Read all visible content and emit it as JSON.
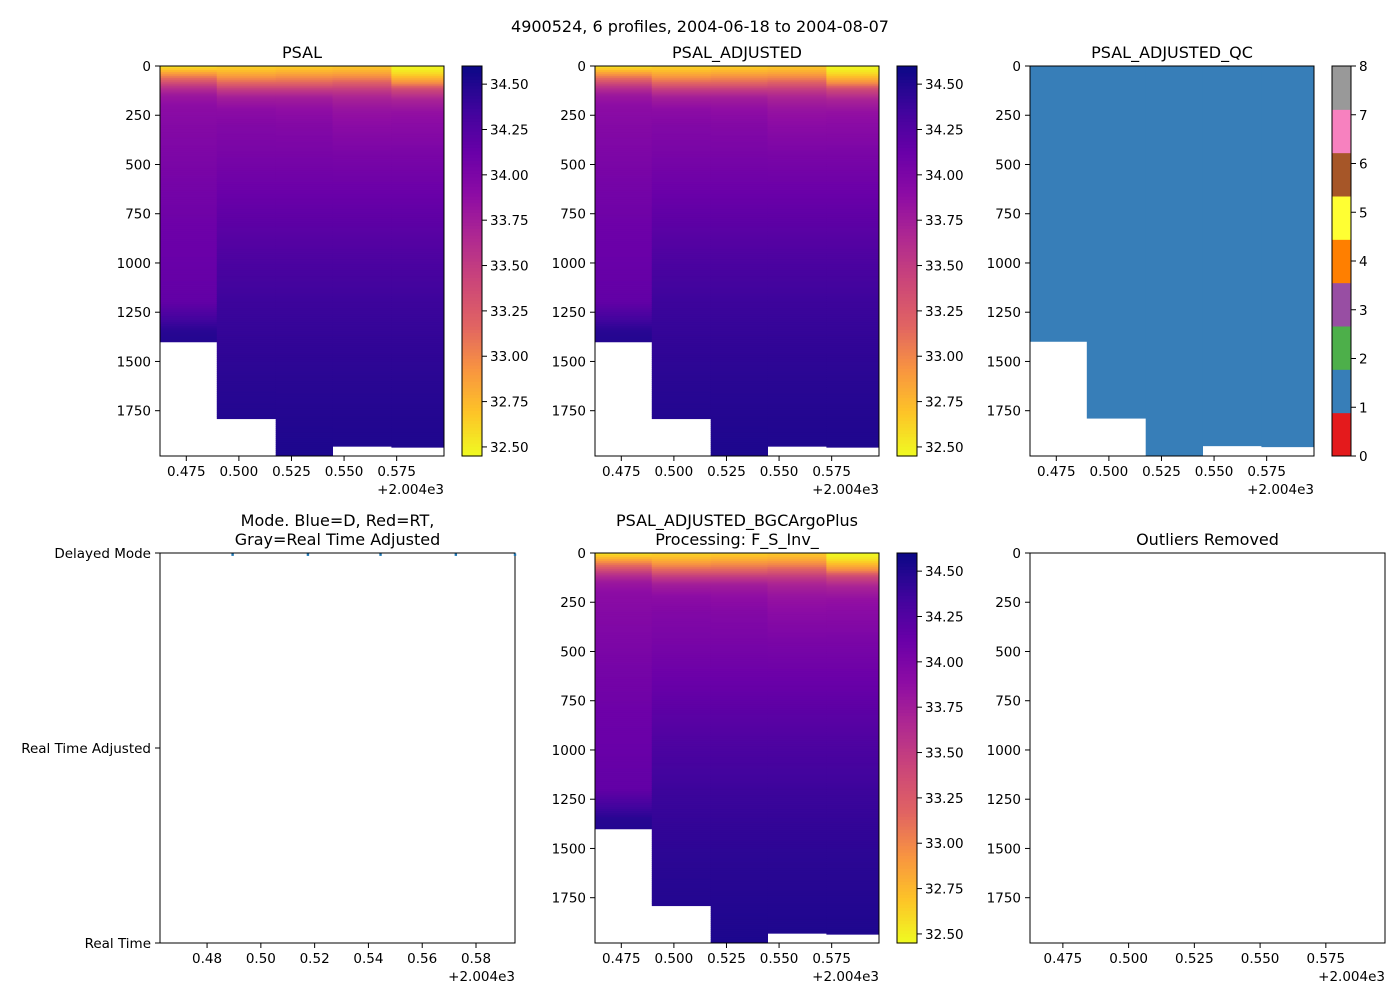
{
  "figure": {
    "suptitle": "4900524, 6 profiles, 2004-06-18 to 2004-08-07",
    "x_offset_label": "+2.004e3"
  },
  "colors": {
    "background": "#ffffff",
    "axis": "#000000",
    "plasma_r": [
      "#f0f921",
      "#fdc328",
      "#f89441",
      "#e16462",
      "#cc4778",
      "#b12a90",
      "#8f0da4",
      "#6a00a8",
      "#41049d",
      "#0d0887"
    ],
    "qc_classes": [
      "#e41a1c",
      "#377eb8",
      "#4daf4a",
      "#984ea3",
      "#ff7f00",
      "#ffff33",
      "#a65628",
      "#f781bf",
      "#999999"
    ],
    "mode_marker": "#1f77b4"
  },
  "chart_data": [
    {
      "type": "heatmap",
      "id": "psal",
      "title": "PSAL",
      "colormap": "plasma_r",
      "xlim": [
        2004.4625,
        2004.5975
      ],
      "ylim": [
        1980,
        0
      ],
      "xticks": [
        2004.475,
        2004.5,
        2004.525,
        2004.55,
        2004.575
      ],
      "xtick_labels": [
        "0.475",
        "0.500",
        "0.525",
        "0.550",
        "0.575"
      ],
      "yticks": [
        0,
        250,
        500,
        750,
        1000,
        1250,
        1500,
        1750
      ],
      "ytick_labels": [
        "0",
        "250",
        "500",
        "750",
        "1000",
        "1250",
        "1500",
        "1750"
      ],
      "colorbar": {
        "range": [
          32.45,
          34.6
        ],
        "ticks": [
          32.5,
          32.75,
          33.0,
          33.25,
          33.5,
          33.75,
          34.0,
          34.25,
          34.5
        ],
        "tick_labels": [
          "32.50",
          "32.75",
          "33.00",
          "33.25",
          "33.50",
          "33.75",
          "34.00",
          "34.25",
          "34.50"
        ]
      },
      "profiles": [
        {
          "x_start": 2004.4625,
          "x_end": 2004.4895,
          "max_depth": 1400,
          "z": [
            0,
            20,
            40,
            60,
            80,
            100,
            120,
            150,
            200,
            300,
            450,
            600,
            800,
            1000,
            1200,
            1350,
            1400
          ],
          "v": [
            32.55,
            32.7,
            32.9,
            33.1,
            33.3,
            33.5,
            33.65,
            33.8,
            33.9,
            33.95,
            34.0,
            34.05,
            34.1,
            34.13,
            34.17,
            34.48,
            34.5
          ]
        },
        {
          "x_start": 2004.4895,
          "x_end": 2004.5175,
          "max_depth": 1790,
          "z": [
            0,
            30,
            60,
            90,
            120,
            160,
            220,
            300,
            450,
            600,
            800,
            1000,
            1200,
            1400,
            1600,
            1790
          ],
          "v": [
            32.6,
            32.75,
            32.95,
            33.2,
            33.5,
            33.75,
            33.9,
            33.97,
            34.03,
            34.1,
            34.2,
            34.3,
            34.38,
            34.43,
            34.47,
            34.5
          ]
        },
        {
          "x_start": 2004.5175,
          "x_end": 2004.5445,
          "max_depth": 1980,
          "z": [
            0,
            30,
            60,
            90,
            120,
            160,
            220,
            300,
            450,
            600,
            800,
            1000,
            1200,
            1400,
            1600,
            1800,
            1980
          ],
          "v": [
            32.62,
            32.78,
            32.98,
            33.2,
            33.5,
            33.75,
            33.88,
            33.96,
            34.03,
            34.1,
            34.2,
            34.3,
            34.38,
            34.43,
            34.47,
            34.5,
            34.53
          ]
        },
        {
          "x_start": 2004.5445,
          "x_end": 2004.5725,
          "max_depth": 1930,
          "z": [
            0,
            30,
            60,
            90,
            120,
            160,
            220,
            310,
            450,
            600,
            800,
            1000,
            1200,
            1400,
            1600,
            1800,
            1930
          ],
          "v": [
            32.65,
            32.8,
            33.0,
            33.25,
            33.5,
            33.7,
            33.83,
            33.92,
            34.02,
            34.1,
            34.2,
            34.3,
            34.38,
            34.43,
            34.47,
            34.5,
            34.52
          ]
        },
        {
          "x_start": 2004.5725,
          "x_end": 2004.5975,
          "max_depth": 1935,
          "z": [
            0,
            20,
            40,
            60,
            90,
            120,
            170,
            230,
            300,
            450,
            600,
            800,
            1000,
            1200,
            1400,
            1600,
            1800,
            1935
          ],
          "v": [
            32.45,
            32.5,
            32.6,
            32.75,
            33.0,
            33.4,
            33.7,
            33.85,
            33.92,
            34.02,
            34.1,
            34.2,
            34.3,
            34.38,
            34.43,
            34.47,
            34.5,
            34.52
          ]
        }
      ]
    },
    {
      "type": "heatmap",
      "id": "psal_adjusted",
      "title": "PSAL_ADJUSTED",
      "colormap": "plasma_r",
      "xlim": [
        2004.4625,
        2004.5975
      ],
      "ylim": [
        1980,
        0
      ],
      "xticks": [
        2004.475,
        2004.5,
        2004.525,
        2004.55,
        2004.575
      ],
      "xtick_labels": [
        "0.475",
        "0.500",
        "0.525",
        "0.550",
        "0.575"
      ],
      "yticks": [
        0,
        250,
        500,
        750,
        1000,
        1250,
        1500,
        1750
      ],
      "ytick_labels": [
        "0",
        "250",
        "500",
        "750",
        "1000",
        "1250",
        "1500",
        "1750"
      ],
      "colorbar": {
        "range": [
          32.45,
          34.6
        ],
        "ticks": [
          32.5,
          32.75,
          33.0,
          33.25,
          33.5,
          33.75,
          34.0,
          34.25,
          34.5
        ],
        "tick_labels": [
          "32.50",
          "32.75",
          "33.00",
          "33.25",
          "33.50",
          "33.75",
          "34.00",
          "34.25",
          "34.50"
        ]
      },
      "profiles": [
        {
          "x_start": 2004.4625,
          "x_end": 2004.4895,
          "max_depth": 1400,
          "z": [
            0,
            20,
            40,
            60,
            80,
            100,
            120,
            150,
            200,
            300,
            450,
            600,
            800,
            1000,
            1200,
            1350,
            1400
          ],
          "v": [
            32.55,
            32.7,
            32.9,
            33.1,
            33.3,
            33.5,
            33.65,
            33.8,
            33.9,
            33.95,
            34.0,
            34.05,
            34.1,
            34.13,
            34.17,
            34.48,
            34.5
          ]
        },
        {
          "x_start": 2004.4895,
          "x_end": 2004.5175,
          "max_depth": 1790,
          "z": [
            0,
            30,
            60,
            90,
            120,
            160,
            220,
            300,
            450,
            600,
            800,
            1000,
            1200,
            1400,
            1600,
            1790
          ],
          "v": [
            32.6,
            32.75,
            32.95,
            33.2,
            33.5,
            33.75,
            33.9,
            33.97,
            34.03,
            34.1,
            34.2,
            34.3,
            34.38,
            34.43,
            34.47,
            34.5
          ]
        },
        {
          "x_start": 2004.5175,
          "x_end": 2004.5445,
          "max_depth": 1980,
          "z": [
            0,
            30,
            60,
            90,
            120,
            160,
            220,
            300,
            450,
            600,
            800,
            1000,
            1200,
            1400,
            1600,
            1800,
            1980
          ],
          "v": [
            32.62,
            32.78,
            32.98,
            33.2,
            33.5,
            33.75,
            33.88,
            33.96,
            34.03,
            34.1,
            34.2,
            34.3,
            34.38,
            34.43,
            34.47,
            34.5,
            34.53
          ]
        },
        {
          "x_start": 2004.5445,
          "x_end": 2004.5725,
          "max_depth": 1930,
          "z": [
            0,
            30,
            60,
            90,
            120,
            160,
            220,
            310,
            450,
            600,
            800,
            1000,
            1200,
            1400,
            1600,
            1800,
            1930
          ],
          "v": [
            32.65,
            32.8,
            33.0,
            33.25,
            33.5,
            33.7,
            33.83,
            33.92,
            34.02,
            34.1,
            34.2,
            34.3,
            34.38,
            34.43,
            34.47,
            34.5,
            34.52
          ]
        },
        {
          "x_start": 2004.5725,
          "x_end": 2004.5975,
          "max_depth": 1935,
          "z": [
            0,
            20,
            40,
            60,
            90,
            120,
            170,
            230,
            300,
            450,
            600,
            800,
            1000,
            1200,
            1400,
            1600,
            1800,
            1935
          ],
          "v": [
            32.45,
            32.5,
            32.6,
            32.75,
            33.0,
            33.4,
            33.7,
            33.85,
            33.92,
            34.02,
            34.1,
            34.2,
            34.3,
            34.38,
            34.43,
            34.47,
            34.5,
            34.52
          ]
        }
      ]
    },
    {
      "type": "heatmap",
      "id": "psal_adjusted_qc",
      "title": "PSAL_ADJUSTED_QC",
      "colormap": "qc_classes",
      "xlim": [
        2004.4625,
        2004.5975
      ],
      "ylim": [
        1980,
        0
      ],
      "xticks": [
        2004.475,
        2004.5,
        2004.525,
        2004.55,
        2004.575
      ],
      "xtick_labels": [
        "0.475",
        "0.500",
        "0.525",
        "0.550",
        "0.575"
      ],
      "yticks": [
        0,
        250,
        500,
        750,
        1000,
        1250,
        1500,
        1750
      ],
      "ytick_labels": [
        "0",
        "250",
        "500",
        "750",
        "1000",
        "1250",
        "1500",
        "1750"
      ],
      "colorbar": {
        "range": [
          0,
          8
        ],
        "ticks": [
          0,
          1,
          2,
          3,
          4,
          5,
          6,
          7,
          8
        ],
        "tick_labels": [
          "0",
          "1",
          "2",
          "3",
          "4",
          "5",
          "6",
          "7",
          "8"
        ]
      },
      "profiles": [
        {
          "x_start": 2004.4625,
          "x_end": 2004.4895,
          "max_depth": 1400,
          "value": 1
        },
        {
          "x_start": 2004.4895,
          "x_end": 2004.5175,
          "max_depth": 1790,
          "value": 1
        },
        {
          "x_start": 2004.5175,
          "x_end": 2004.5445,
          "max_depth": 1980,
          "value": 1
        },
        {
          "x_start": 2004.5445,
          "x_end": 2004.5725,
          "max_depth": 1930,
          "value": 1
        },
        {
          "x_start": 2004.5725,
          "x_end": 2004.5975,
          "max_depth": 1935,
          "value": 1
        }
      ]
    },
    {
      "type": "scatter",
      "id": "mode",
      "title_lines": [
        "Mode. Blue=D, Red=RT,",
        "Gray=Real Time Adjusted"
      ],
      "xlim": [
        2004.4625,
        2004.5945
      ],
      "ylim": [
        0,
        2
      ],
      "xticks": [
        2004.48,
        2004.5,
        2004.52,
        2004.54,
        2004.56,
        2004.58
      ],
      "xtick_labels": [
        "0.48",
        "0.50",
        "0.52",
        "0.54",
        "0.56",
        "0.58"
      ],
      "yticks": [
        0,
        1,
        2
      ],
      "ytick_labels": [
        "Real Time",
        "Real Time Adjusted",
        "Delayed Mode"
      ],
      "points": [
        {
          "x": 2004.4895,
          "y": 2
        },
        {
          "x": 2004.5175,
          "y": 2
        },
        {
          "x": 2004.5445,
          "y": 2
        },
        {
          "x": 2004.5725,
          "y": 2
        },
        {
          "x": 2004.5945,
          "y": 2
        }
      ]
    },
    {
      "type": "heatmap",
      "id": "psal_bgc",
      "title_lines": [
        "PSAL_ADJUSTED_BGCArgoPlus",
        "Processing: F_S_Inv_"
      ],
      "colormap": "plasma_r",
      "xlim": [
        2004.4625,
        2004.5975
      ],
      "ylim": [
        1980,
        0
      ],
      "xticks": [
        2004.475,
        2004.5,
        2004.525,
        2004.55,
        2004.575
      ],
      "xtick_labels": [
        "0.475",
        "0.500",
        "0.525",
        "0.550",
        "0.575"
      ],
      "yticks": [
        0,
        250,
        500,
        750,
        1000,
        1250,
        1500,
        1750
      ],
      "ytick_labels": [
        "0",
        "250",
        "500",
        "750",
        "1000",
        "1250",
        "1500",
        "1750"
      ],
      "colorbar": {
        "range": [
          32.45,
          34.6
        ],
        "ticks": [
          32.5,
          32.75,
          33.0,
          33.25,
          33.5,
          33.75,
          34.0,
          34.25,
          34.5
        ],
        "tick_labels": [
          "32.50",
          "32.75",
          "33.00",
          "33.25",
          "33.50",
          "33.75",
          "34.00",
          "34.25",
          "34.50"
        ]
      },
      "profiles": [
        {
          "x_start": 2004.4625,
          "x_end": 2004.4895,
          "max_depth": 1400,
          "z": [
            0,
            20,
            40,
            60,
            80,
            100,
            120,
            150,
            200,
            300,
            450,
            600,
            800,
            1000,
            1200,
            1350,
            1400
          ],
          "v": [
            32.55,
            32.7,
            32.9,
            33.1,
            33.3,
            33.5,
            33.65,
            33.8,
            33.9,
            33.95,
            34.0,
            34.05,
            34.1,
            34.13,
            34.17,
            34.48,
            34.5
          ]
        },
        {
          "x_start": 2004.4895,
          "x_end": 2004.5175,
          "max_depth": 1790,
          "z": [
            0,
            30,
            60,
            90,
            120,
            160,
            220,
            300,
            450,
            600,
            800,
            1000,
            1200,
            1400,
            1600,
            1790
          ],
          "v": [
            32.6,
            32.75,
            32.95,
            33.2,
            33.5,
            33.75,
            33.9,
            33.97,
            34.03,
            34.1,
            34.2,
            34.3,
            34.38,
            34.43,
            34.47,
            34.5
          ]
        },
        {
          "x_start": 2004.5175,
          "x_end": 2004.5445,
          "max_depth": 1980,
          "z": [
            0,
            30,
            60,
            90,
            120,
            160,
            220,
            300,
            450,
            600,
            800,
            1000,
            1200,
            1400,
            1600,
            1800,
            1980
          ],
          "v": [
            32.62,
            32.78,
            32.98,
            33.2,
            33.5,
            33.75,
            33.88,
            33.96,
            34.03,
            34.1,
            34.2,
            34.3,
            34.38,
            34.43,
            34.47,
            34.5,
            34.53
          ]
        },
        {
          "x_start": 2004.5445,
          "x_end": 2004.5725,
          "max_depth": 1930,
          "z": [
            0,
            30,
            60,
            90,
            120,
            160,
            220,
            310,
            450,
            600,
            800,
            1000,
            1200,
            1400,
            1600,
            1800,
            1930
          ],
          "v": [
            32.65,
            32.8,
            33.0,
            33.25,
            33.5,
            33.7,
            33.83,
            33.92,
            34.02,
            34.1,
            34.2,
            34.3,
            34.38,
            34.43,
            34.47,
            34.5,
            34.52
          ]
        },
        {
          "x_start": 2004.5725,
          "x_end": 2004.5975,
          "max_depth": 1935,
          "z": [
            0,
            20,
            40,
            60,
            90,
            120,
            170,
            230,
            300,
            450,
            600,
            800,
            1000,
            1200,
            1400,
            1600,
            1800,
            1935
          ],
          "v": [
            32.45,
            32.5,
            32.6,
            32.75,
            33.0,
            33.4,
            33.7,
            33.85,
            33.92,
            34.02,
            34.1,
            34.2,
            34.3,
            34.38,
            34.43,
            34.47,
            34.5,
            34.52
          ]
        }
      ]
    },
    {
      "type": "scatter",
      "id": "outliers",
      "title": "Outliers Removed",
      "xlim": [
        2004.4625,
        2004.5975
      ],
      "ylim": [
        1980,
        0
      ],
      "xticks": [
        2004.475,
        2004.5,
        2004.525,
        2004.55,
        2004.575
      ],
      "xtick_labels": [
        "0.475",
        "0.500",
        "0.525",
        "0.550",
        "0.575"
      ],
      "yticks": [
        0,
        250,
        500,
        750,
        1000,
        1250,
        1500,
        1750
      ],
      "ytick_labels": [
        "0",
        "250",
        "500",
        "750",
        "1000",
        "1250",
        "1500",
        "1750"
      ],
      "points": []
    }
  ]
}
